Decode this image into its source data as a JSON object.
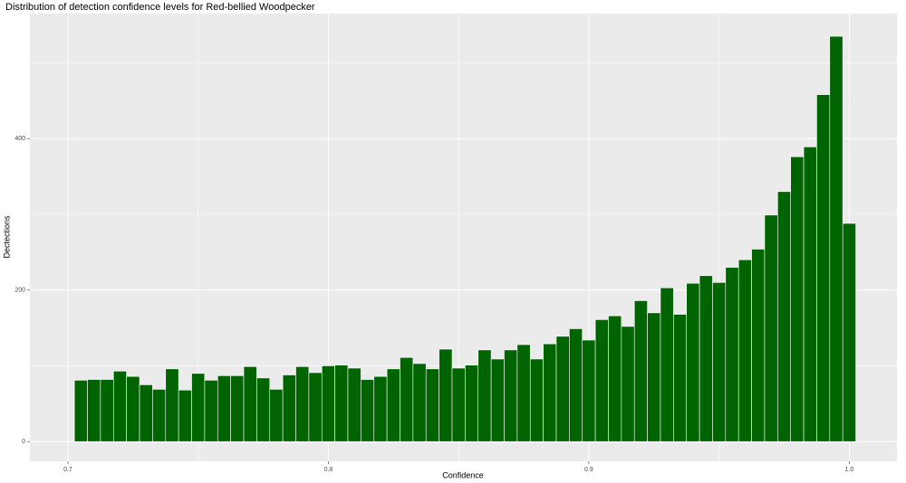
{
  "chart_data": {
    "type": "histogram",
    "title": "Distribution of detection confidence levels for Red-bellied Woodpecker",
    "x_label": "Confidence",
    "y_label": "Dectections",
    "color": "#006400",
    "bins": [
      0.7025,
      0.7075,
      0.7125,
      0.7175,
      0.7225,
      0.7275,
      0.7325,
      0.7375,
      0.7425,
      0.7475,
      0.7525,
      0.7575,
      0.7625,
      0.7675,
      0.7725,
      0.7775,
      0.7825,
      0.7875,
      0.7925,
      0.7975,
      0.8025,
      0.8075,
      0.8125,
      0.8175,
      0.8225,
      0.8275,
      0.8325,
      0.8375,
      0.8425,
      0.8475,
      0.8525,
      0.8575,
      0.8625,
      0.8675,
      0.8725,
      0.8775,
      0.8825,
      0.8875,
      0.8925,
      0.8975,
      0.9025,
      0.9075,
      0.9125,
      0.9175,
      0.9225,
      0.9275,
      0.9325,
      0.9375,
      0.9425,
      0.9475,
      0.9525,
      0.9575,
      0.9625,
      0.9675,
      0.9725,
      0.9775,
      0.9825,
      0.9875,
      0.9925,
      0.9975,
      1.0025
    ],
    "values": [
      81,
      82,
      82,
      93,
      86,
      75,
      69,
      96,
      68,
      90,
      81,
      87,
      87,
      99,
      84,
      69,
      88,
      99,
      91,
      100,
      101,
      97,
      82,
      86,
      96,
      111,
      103,
      96,
      122,
      97,
      101,
      121,
      109,
      121,
      128,
      109,
      129,
      139,
      149,
      134,
      161,
      166,
      152,
      186,
      170,
      203,
      168,
      209,
      219,
      210,
      230,
      240,
      254,
      299,
      330,
      376,
      389,
      458,
      535,
      288
    ],
    "xlim": [
      0.6854,
      1.0183
    ],
    "ylim": [
      -26,
      565
    ],
    "xticks": [
      0.7,
      0.8,
      0.9,
      {
        "value": 1,
        "label": "1.0"
      }
    ],
    "yticks": [
      0,
      200,
      400
    ],
    "minor_xticks": [
      0.75,
      0.85,
      0.95
    ],
    "minor_yticks": [
      100,
      300,
      500
    ],
    "grid": true
  }
}
